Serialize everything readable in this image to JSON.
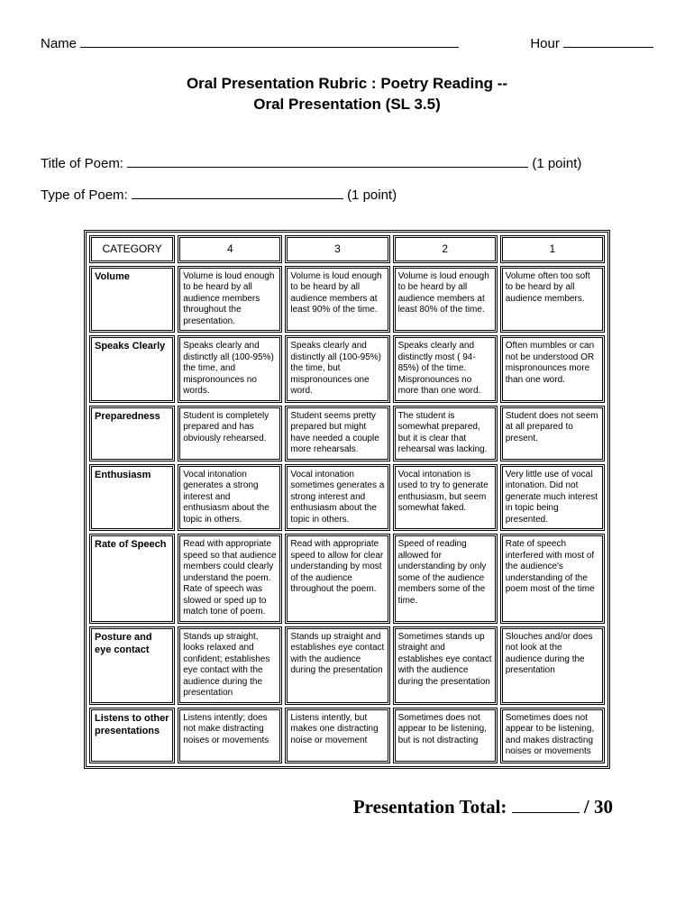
{
  "header": {
    "name_label": "Name",
    "hour_label": "Hour"
  },
  "title": {
    "line1": "Oral Presentation Rubric : Poetry Reading --",
    "line2": "Oral Presentation (SL 3.5)"
  },
  "meta": {
    "title_of_poem_label": "Title of Poem:",
    "title_of_poem_points": "(1 point)",
    "type_of_poem_label": "Type of Poem:",
    "type_of_poem_points": "(1 point)"
  },
  "rubric": {
    "header": {
      "category": "CATEGORY",
      "c4": "4",
      "c3": "3",
      "c2": "2",
      "c1": "1"
    },
    "rows": [
      {
        "category": "Volume",
        "c4": "Volume is loud enough to be heard by all audience members throughout the presentation.",
        "c3": "Volume is loud enough to be heard by all audience members at least 90% of the time.",
        "c2": "Volume is loud enough to be heard by all audience members at least 80% of the time.",
        "c1": "Volume often too soft to be heard by all audience members."
      },
      {
        "category": "Speaks Clearly",
        "c4": "Speaks clearly and distinctly all (100-95%) the time, and mispronounces no words.",
        "c3": "Speaks clearly and distinctly all (100-95%) the time, but mispronounces one word.",
        "c2": "Speaks clearly and distinctly most ( 94-85%) of the time. Mispronounces no more than one word.",
        "c1": "Often mumbles or can not be understood OR mispronounces more than one word."
      },
      {
        "category": "Preparedness",
        "c4": "Student is completely prepared and has obviously rehearsed.",
        "c3": "Student seems pretty prepared but might have needed a couple more rehearsals.",
        "c2": "The student is somewhat prepared, but it is clear that rehearsal was lacking.",
        "c1": "Student does not seem at all prepared to present."
      },
      {
        "category": "Enthusiasm",
        "c4": "Vocal intonation generates a strong interest and enthusiasm about the topic in others.",
        "c3": "Vocal intonation sometimes generates a strong interest and enthusiasm about the topic in others.",
        "c2": "Vocal intonation is used to try to generate enthusiasm, but seem somewhat faked.",
        "c1": "Very little use of vocal intonation. Did not generate much interest in topic being presented."
      },
      {
        "category": "Rate of Speech",
        "c4": "Read with appropriate speed so that audience members could clearly understand the poem. Rate of speech was slowed or sped up to match tone of poem.",
        "c3": "Read with appropriate speed to allow for clear understanding by most of the audience throughout the poem.",
        "c2": "Speed of reading allowed for understanding by only some of the audience members some of the time.",
        "c1": "Rate of speech interfered with most of the audience's understanding of the poem most of the time"
      },
      {
        "category": "Posture and eye contact",
        "c4": "Stands up straight, looks relaxed and confident; establishes eye contact with the audience during the presentation",
        "c3": "Stands up straight and establishes eye contact with the audience during the presentation",
        "c2": "Sometimes stands up straight and establishes eye contact with the audience during the presentation",
        "c1": "Slouches and/or does not look at the audience during the presentation"
      },
      {
        "category": "Listens to other presentations",
        "c4": "Listens intently; does not make distracting noises or movements",
        "c3": "Listens intently, but makes one distracting noise or movement",
        "c2": "Sometimes does not appear to be listening, but is not distracting",
        "c1": "Sometimes does not appear to be listening, and makes distracting noises or movements"
      }
    ]
  },
  "total": {
    "label": "Presentation Total:",
    "max": "/ 30"
  }
}
